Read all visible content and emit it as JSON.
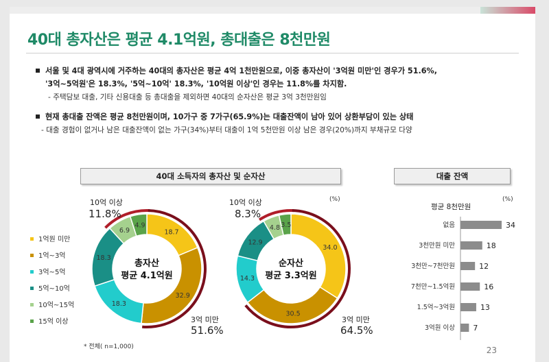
{
  "title": "40대 총자산은 평균 4.1억원, 총대출은 8천만원",
  "bullets": [
    {
      "text": "서울 및 4대 광역시에 거주하는 40대의 총자산은 평균 4억 1천만원으로, 이중 총자산이 '3억원 미만'인 경우가 51.6%,"
    },
    {
      "text": "'3억~5억원'은 18.3%, '5억~10억' 18.3%, '10억원 이상'인 경우는 11.8%를 차지함."
    },
    {
      "text": "- 주택담보 대출, 기타 신용대출 등 총대출을 제외하면 40대의 순자산은 평균 3억 3천만원임"
    },
    {
      "text": "현재 총대출 잔액은 평균 8천만원이며, 10가구 중 7가구(65.9%)는 대출잔액이 남아 있어 상환부담이 있는 상태"
    },
    {
      "text": "- 대출 경험이 없거나 남은 대출잔액이 없는 가구(34%)부터 대출이 1억 5천만원 이상 남은 경우(20%)까지 부채규모 다양"
    }
  ],
  "headers": {
    "left": "40대 소득자의 총자산 및 순자산",
    "right": "대출 잔액"
  },
  "unit_pct": "(%)",
  "note": "* 전체( n=1,000)",
  "page_number": "23",
  "legend": [
    {
      "label": "1억원 미만",
      "color": "#f5c518"
    },
    {
      "label": "1억~3억",
      "color": "#c99100"
    },
    {
      "label": "3억~5억",
      "color": "#22cccc"
    },
    {
      "label": "5억~10억",
      "color": "#1a8f86"
    },
    {
      "label": "10억~15억",
      "color": "#a5d18e"
    },
    {
      "label": "15억 이상",
      "color": "#5aa34a"
    }
  ],
  "chart_data": [
    {
      "type": "pie",
      "variant": "donut",
      "center_label": [
        "총자산",
        "평균 4.1억원"
      ],
      "categories": [
        "1억원 미만",
        "1억~3억",
        "3억~5억",
        "5억~10억",
        "10억~15억",
        "15억 이상"
      ],
      "values": [
        18.7,
        32.9,
        18.3,
        18.3,
        6.9,
        4.9
      ],
      "value_labels": [
        "18.7",
        "32.9",
        "18.3",
        "18.3",
        "6.9",
        "4.9"
      ],
      "annotations": {
        "top_label": "10억 이상",
        "top_value": "11.8%",
        "bottom_label": "3억 미만",
        "bottom_value": "51.6%"
      }
    },
    {
      "type": "pie",
      "variant": "donut",
      "center_label": [
        "순자산",
        "평균 3.3억원"
      ],
      "categories": [
        "1억원 미만",
        "1억~3억",
        "3억~5억",
        "5억~10억",
        "10억~15억",
        "15억 이상"
      ],
      "values": [
        34.0,
        30.5,
        14.3,
        12.9,
        4.8,
        3.5
      ],
      "value_labels": [
        "34.0",
        "30.5",
        "14.3",
        "12.9",
        "4.8",
        "3.5"
      ],
      "annotations": {
        "top_label": "10억 이상",
        "top_value": "8.3%",
        "bottom_label": "3억 미만",
        "bottom_value": "64.5%"
      }
    },
    {
      "type": "bar",
      "orientation": "horizontal",
      "title": "평균 8천만원",
      "categories": [
        "없음",
        "3천만원 미만",
        "3천만~7천만원",
        "7천만~1.5억원",
        "1.5억~3억원",
        "3억원 이상"
      ],
      "values": [
        34,
        18,
        12,
        16,
        13,
        7
      ],
      "color": "#8c8c8c"
    }
  ]
}
